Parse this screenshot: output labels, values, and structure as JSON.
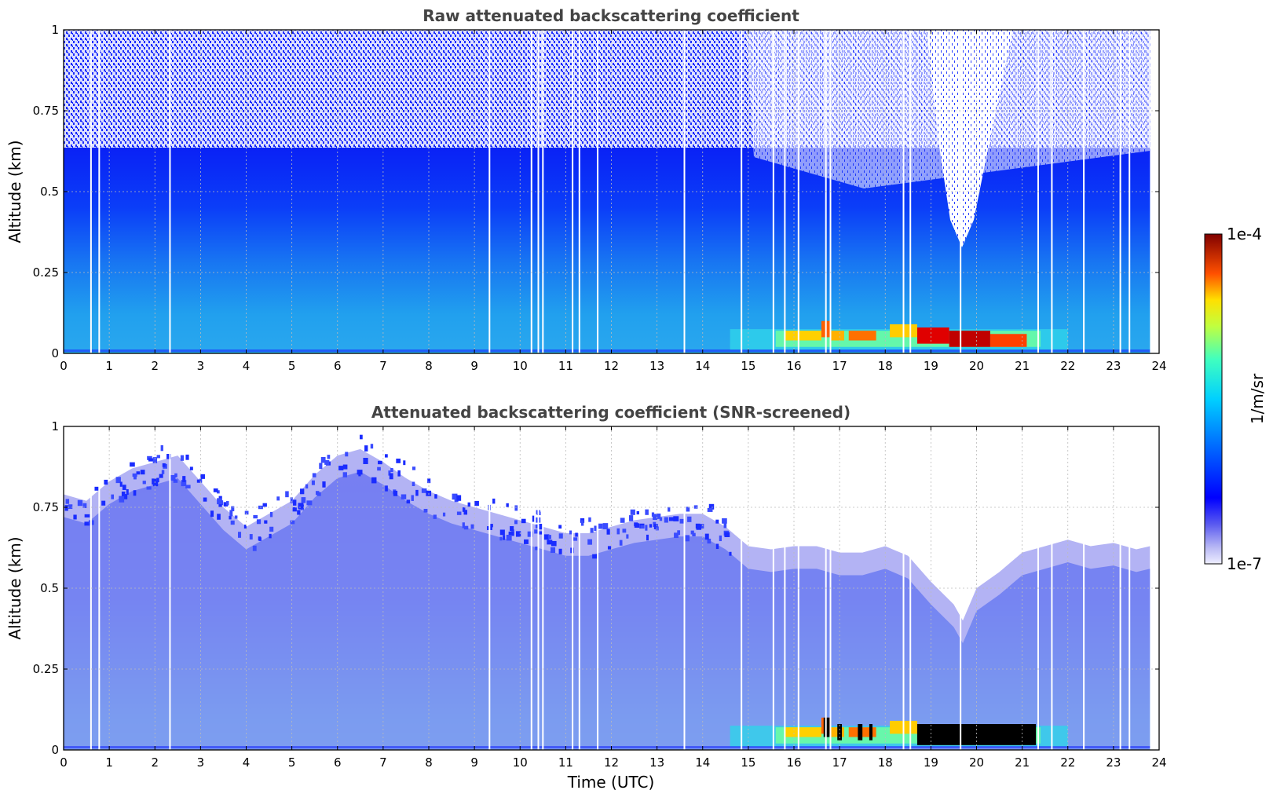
{
  "chart_data": [
    {
      "type": "heatmap",
      "title": "Raw attenuated backscattering coefficient",
      "xlabel": "",
      "ylabel": "Altitude (km)",
      "xlim": [
        0,
        24
      ],
      "ylim": [
        0,
        1
      ],
      "xticks": [
        "0",
        "1",
        "2",
        "3",
        "4",
        "5",
        "6",
        "7",
        "8",
        "9",
        "10",
        "11",
        "12",
        "13",
        "14",
        "15",
        "16",
        "17",
        "18",
        "19",
        "20",
        "21",
        "22",
        "23",
        "24"
      ],
      "yticks": [
        "0",
        "0.25",
        "0.5",
        "0.75",
        "1"
      ],
      "grid": true,
      "data_gaps_utc": [
        0.6,
        0.78,
        2.33,
        9.33,
        10.25,
        10.4,
        10.5,
        11.15,
        11.3,
        11.7,
        13.6,
        14.85,
        15.55,
        15.8,
        16.1,
        16.7,
        16.8,
        18.4,
        18.55,
        19.65,
        21.35,
        21.65,
        22.35,
        23.15,
        23.35
      ],
      "features": [
        {
          "name": "near-surface aerosol layer",
          "x": [
            15.5,
            21.4
          ],
          "y": [
            0.01,
            0.09
          ],
          "value_m-1sr-1": 6e-05
        },
        {
          "name": "boundary layer",
          "x": [
            0,
            23.8
          ],
          "y": [
            0,
            0.3
          ],
          "value_m-1sr-1": 3e-06
        },
        {
          "name": "noise above",
          "x": [
            0,
            23.8
          ],
          "y": [
            0.55,
            1
          ],
          "value_m-1sr-1": 2e-07
        }
      ]
    },
    {
      "type": "heatmap",
      "title": "Attenuated backscattering coefficient (SNR-screened)",
      "xlabel": "Time (UTC)",
      "ylabel": "Altitude (km)",
      "xlim": [
        0,
        24
      ],
      "ylim": [
        0,
        1
      ],
      "xticks": [
        "0",
        "1",
        "2",
        "3",
        "4",
        "5",
        "6",
        "7",
        "8",
        "9",
        "10",
        "11",
        "12",
        "13",
        "14",
        "15",
        "16",
        "17",
        "18",
        "19",
        "20",
        "21",
        "22",
        "23",
        "24"
      ],
      "yticks": [
        "0",
        "0.25",
        "0.5",
        "0.75",
        "1"
      ],
      "grid": true,
      "signal_top_km": {
        "x": [
          0,
          0.5,
          1,
          1.5,
          2,
          2.5,
          3,
          3.5,
          4,
          4.5,
          5,
          5.5,
          6,
          6.5,
          7,
          7.5,
          8,
          8.5,
          9,
          9.5,
          10,
          10.5,
          11,
          11.5,
          12,
          12.5,
          13,
          13.5,
          14,
          14.5,
          15,
          15.5,
          16,
          16.5,
          17,
          17.5,
          18,
          18.5,
          19,
          19.5,
          19.7,
          20,
          20.5,
          21,
          21.5,
          22,
          22.5,
          23,
          23.5,
          23.8
        ],
        "y": [
          0.72,
          0.7,
          0.76,
          0.8,
          0.82,
          0.84,
          0.76,
          0.68,
          0.62,
          0.66,
          0.7,
          0.78,
          0.84,
          0.86,
          0.82,
          0.77,
          0.73,
          0.7,
          0.68,
          0.66,
          0.64,
          0.62,
          0.6,
          0.6,
          0.62,
          0.64,
          0.65,
          0.66,
          0.66,
          0.62,
          0.56,
          0.55,
          0.56,
          0.56,
          0.54,
          0.54,
          0.56,
          0.53,
          0.45,
          0.38,
          0.33,
          0.43,
          0.48,
          0.54,
          0.56,
          0.58,
          0.56,
          0.57,
          0.55,
          0.56
        ]
      },
      "features": [
        {
          "name": "near-surface aerosol layer",
          "x": [
            15.5,
            21.4
          ],
          "y": [
            0.01,
            0.09
          ],
          "value_m-1sr-1": 6e-05
        },
        {
          "name": "screened (black) points",
          "x": [
            18.7,
            21.3
          ],
          "y": [
            0.01,
            0.08
          ]
        }
      ]
    }
  ],
  "colorbar": {
    "label": "1/m/sr",
    "min_label": "1e-7",
    "max_label": "1e-4",
    "scale": "log",
    "colormap": "jet-like with light purple low end"
  }
}
